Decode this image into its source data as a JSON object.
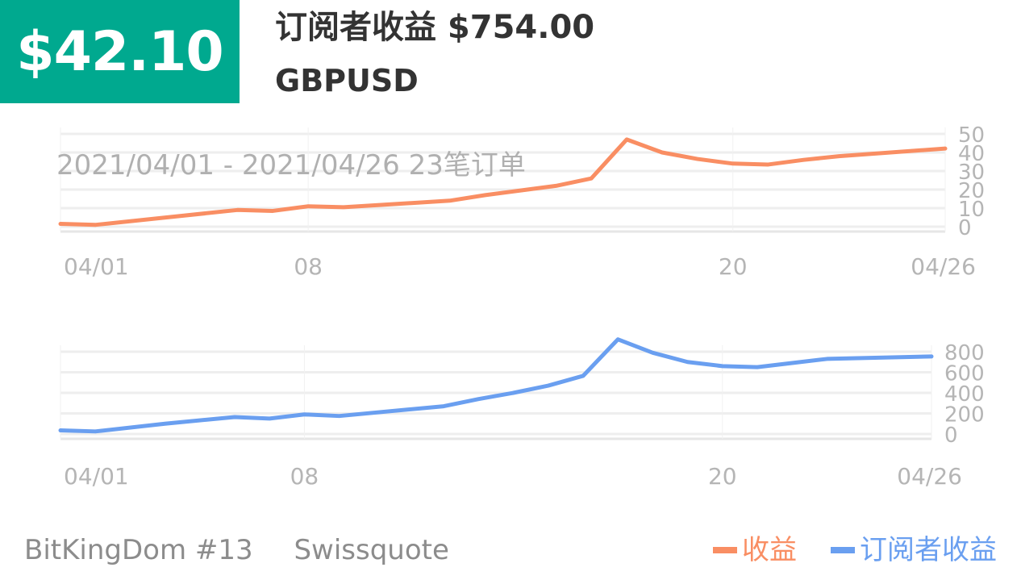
{
  "header": {
    "badge_value": "$42.10",
    "headline": "订阅者收益 $754.00",
    "symbol": "GBPUSD"
  },
  "footer": {
    "account": "BitKingDom #13",
    "broker": "Swissquote"
  },
  "colors": {
    "badge": "#00a98f",
    "profit_series": "#f98e63",
    "subscriber_series": "#6a9ff0"
  },
  "chart_data": [
    {
      "type": "line",
      "annotation": "2021/04/01 - 2021/04/26  23笔订单",
      "x_tick_labels": [
        "04/01",
        "08",
        "20",
        "04/26"
      ],
      "x": [
        "04/01",
        "04/02",
        "04/04",
        "04/06",
        "04/07",
        "04/08",
        "04/09",
        "04/12",
        "04/13",
        "04/14",
        "04/15",
        "04/16",
        "04/17",
        "04/18",
        "04/19",
        "04/20",
        "04/21",
        "04/22",
        "04/23",
        "04/26"
      ],
      "y_ticks": [
        0,
        10,
        20,
        30,
        40,
        50
      ],
      "ylim": [
        0,
        50
      ],
      "series": [
        {
          "name": "收益",
          "values": [
            1.5,
            1.0,
            5.0,
            9.0,
            8.5,
            11.0,
            10.5,
            14.0,
            17.0,
            19.5,
            22.0,
            26.0,
            47.0,
            40.0,
            36.5,
            34.0,
            33.5,
            36.0,
            38.0,
            42.1
          ]
        }
      ],
      "grid": true
    },
    {
      "type": "line",
      "x_tick_labels": [
        "04/01",
        "08",
        "20",
        "04/26"
      ],
      "x": [
        "04/01",
        "04/02",
        "04/04",
        "04/06",
        "04/07",
        "04/08",
        "04/09",
        "04/12",
        "04/13",
        "04/14",
        "04/15",
        "04/16",
        "04/17",
        "04/18",
        "04/19",
        "04/20",
        "04/21",
        "04/22",
        "04/23",
        "04/26"
      ],
      "y_ticks": [
        0,
        200,
        400,
        600,
        800
      ],
      "ylim": [
        0,
        800
      ],
      "series": [
        {
          "name": "订阅者收益",
          "values": [
            35,
            25,
            100,
            165,
            150,
            190,
            175,
            270,
            340,
            400,
            470,
            565,
            920,
            790,
            700,
            660,
            650,
            690,
            730,
            754
          ]
        }
      ],
      "grid": true
    }
  ]
}
